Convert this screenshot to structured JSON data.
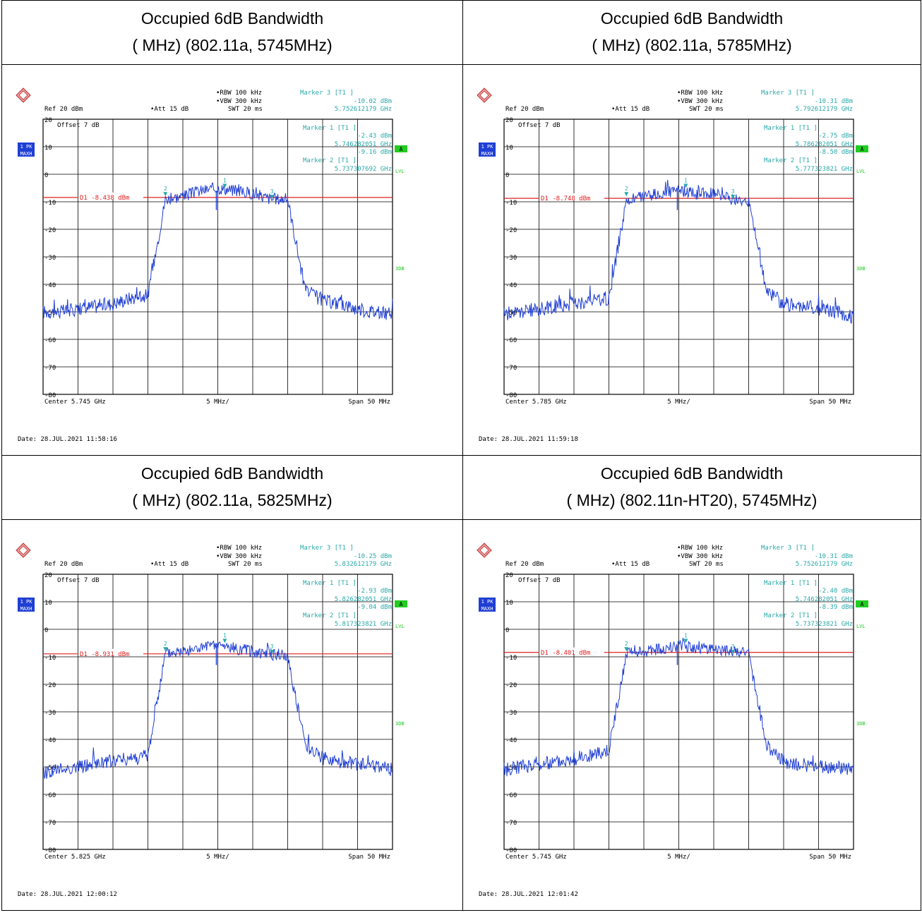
{
  "colors": {
    "trace": "#1f3fd4",
    "limit": "#e02020",
    "annot": "#2aa8a8",
    "grid": "#000000",
    "badge_bg": "#1f3fd4",
    "green": "#22cc22"
  },
  "cells": [
    {
      "title_line1": "Occupied 6dB Bandwidth",
      "title_line2": "( MHz) (802.11a, 5745MHz)",
      "settings": {
        "rbw": "RBW 100 kHz",
        "vbw": "VBW 300 kHz",
        "swt": "SWT 20 ms",
        "ref": "Ref  20 dBm",
        "att": "Att  15 dB",
        "offset": "Offset  7 dB"
      },
      "markers": {
        "m3_label": "Marker 3 [T1 ]",
        "m3_val": "-10.02 dBm",
        "m3_freq": "5.752612179 GHz",
        "m1_label": "Marker 1 [T1 ]",
        "m1_val": "-2.43 dBm",
        "m1_freq": "5.746282051 GHz",
        "m2_label": "Marker 2 [T1 ]",
        "m2_val": "-9.16 dBm",
        "m2_freq": "5.737307692 GHz"
      },
      "d1": "D1  -8.438 dBm",
      "center": "Center  5.745 GHz",
      "div": "5 MHz/",
      "span": "Span  50 MHz",
      "date": "Date: 28.JUL.2021  11:58:16",
      "badge1": "1 PK",
      "badge2": "MAXH",
      "lvl": "LVL",
      "label_a": "A",
      "label_3db": "3DB",
      "chart_data": {
        "type": "line",
        "xlabel": "",
        "ylabel": "",
        "ylim": [
          -80,
          20
        ],
        "center_ghz": 5.745,
        "span_mhz": 50,
        "limit_dbm": -8.438,
        "yticks": [
          "20",
          "10",
          "0",
          "-10",
          "-20",
          "-30",
          "-40",
          "-50",
          "-60",
          "-70",
          "-80"
        ],
        "series": [
          {
            "values": [
              -50,
              -50,
              -49,
              -48,
              -47,
              -45,
              -44,
              -9,
              -8,
              -6,
              -5,
              -6,
              -7,
              -9,
              -9,
              -42,
              -46,
              -47,
              -49,
              -50,
              -51
            ]
          }
        ]
      }
    },
    {
      "title_line1": "Occupied 6dB Bandwidth",
      "title_line2": "( MHz) (802.11a, 5785MHz)",
      "settings": {
        "rbw": "RBW 100 kHz",
        "vbw": "VBW 300 kHz",
        "swt": "SWT 20 ms",
        "ref": "Ref  20 dBm",
        "att": "Att  15 dB",
        "offset": "Offset  7 dB"
      },
      "markers": {
        "m3_label": "Marker 3 [T1 ]",
        "m3_val": "-10.31 dBm",
        "m3_freq": "5.792612179 GHz",
        "m1_label": "Marker 1 [T1 ]",
        "m1_val": "-2.75 dBm",
        "m1_freq": "5.786282051 GHz",
        "m2_label": "Marker 2 [T1 ]",
        "m2_val": "-8.50 dBm",
        "m2_freq": "5.777323821 GHz"
      },
      "d1": "D1  -8.748 dBm",
      "center": "Center  5.785 GHz",
      "div": "5 MHz/",
      "span": "Span  50 MHz",
      "date": "Date: 28.JUL.2021  11:59:18",
      "badge1": "1 PK",
      "badge2": "MAXH",
      "lvl": "LVL",
      "label_a": "A",
      "label_3db": "3DB",
      "chart_data": {
        "type": "line",
        "xlabel": "",
        "ylabel": "",
        "ylim": [
          -80,
          20
        ],
        "center_ghz": 5.785,
        "span_mhz": 50,
        "limit_dbm": -8.748,
        "yticks": [
          "20",
          "10",
          "0",
          "-10",
          "-20",
          "-30",
          "-40",
          "-50",
          "-60",
          "-70",
          "-80"
        ],
        "series": [
          {
            "values": [
              -51,
              -50,
              -49,
              -48,
              -47,
              -46,
              -45,
              -10,
              -8,
              -7,
              -6,
              -7,
              -7,
              -9,
              -10,
              -42,
              -47,
              -48,
              -49,
              -50,
              -52
            ]
          }
        ]
      }
    },
    {
      "title_line1": "Occupied 6dB Bandwidth",
      "title_line2": "( MHz) (802.11a, 5825MHz)",
      "settings": {
        "rbw": "RBW 100 kHz",
        "vbw": "VBW 300 kHz",
        "swt": "SWT 20 ms",
        "ref": "Ref  20 dBm",
        "att": "Att  15 dB",
        "offset": "Offset  7 dB"
      },
      "markers": {
        "m3_label": "Marker 3 [T1 ]",
        "m3_val": "-10.25 dBm",
        "m3_freq": "5.832612179 GHz",
        "m1_label": "Marker 1 [T1 ]",
        "m1_val": "-2.93 dBm",
        "m1_freq": "5.826282051 GHz",
        "m2_label": "Marker 2 [T1 ]",
        "m2_val": "-9.04 dBm",
        "m2_freq": "5.817323821 GHz"
      },
      "d1": "D1  -8.931 dBm",
      "center": "Center  5.825 GHz",
      "div": "5 MHz/",
      "span": "Span  50 MHz",
      "date": "Date: 28.JUL.2021  12:00:12",
      "badge1": "1 PK",
      "badge2": "MAXH",
      "lvl": "LVL",
      "label_a": "A",
      "label_3db": "3DB",
      "chart_data": {
        "type": "line",
        "xlabel": "",
        "ylabel": "",
        "ylim": [
          -80,
          20
        ],
        "center_ghz": 5.825,
        "span_mhz": 50,
        "limit_dbm": -8.931,
        "yticks": [
          "20",
          "10",
          "0",
          "-10",
          "-20",
          "-30",
          "-40",
          "-50",
          "-60",
          "-70",
          "-80"
        ],
        "series": [
          {
            "values": [
              -52,
              -51,
              -50,
              -49,
              -48,
              -47,
              -46,
              -9,
              -8,
              -7,
              -6,
              -7,
              -8,
              -9,
              -10,
              -42,
              -47,
              -48,
              -49,
              -50,
              -51
            ]
          }
        ]
      }
    },
    {
      "title_line1": "Occupied 6dB Bandwidth",
      "title_line2": "( MHz) (802.11n-HT20), 5745MHz)",
      "settings": {
        "rbw": "RBW 100 kHz",
        "vbw": "VBW 300 kHz",
        "swt": "SWT 20 ms",
        "ref": "Ref  20 dBm",
        "att": "Att  15 dB",
        "offset": "Offset  7 dB"
      },
      "markers": {
        "m3_label": "Marker 3 [T1 ]",
        "m3_val": "-10.31 dBm",
        "m3_freq": "5.752612179 GHz",
        "m1_label": "Marker 1 [T1 ]",
        "m1_val": "-2.40 dBm",
        "m1_freq": "5.746282051 GHz",
        "m2_label": "Marker 2 [T1 ]",
        "m2_val": "-8.39 dBm",
        "m2_freq": "5.737323821 GHz"
      },
      "d1": "D1  -8.401 dBm",
      "center": "Center  5.745 GHz",
      "div": "5 MHz/",
      "span": "Span  50 MHz",
      "date": "Date: 28.JUL.2021  12:01:42",
      "badge1": "1 PK",
      "badge2": "MAXH",
      "lvl": "LVL",
      "label_a": "A",
      "label_3db": "3DB",
      "chart_data": {
        "type": "line",
        "xlabel": "",
        "ylabel": "",
        "ylim": [
          -80,
          20
        ],
        "center_ghz": 5.745,
        "span_mhz": 50,
        "limit_dbm": -8.401,
        "yticks": [
          "20",
          "10",
          "0",
          "-10",
          "-20",
          "-30",
          "-40",
          "-50",
          "-60",
          "-70",
          "-80"
        ],
        "series": [
          {
            "values": [
              -51,
              -50,
              -49,
              -48,
              -47,
              -46,
              -44,
              -9,
              -8,
              -7,
              -6,
              -7,
              -7,
              -8,
              -9,
              -42,
              -48,
              -49,
              -50,
              -50,
              -51
            ]
          }
        ]
      }
    }
  ]
}
